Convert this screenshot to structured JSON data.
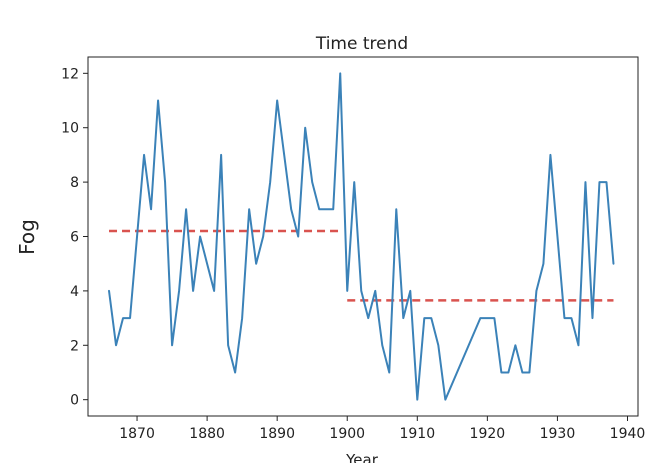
{
  "chart_data": {
    "type": "line",
    "title": "Time trend",
    "xlabel": "Year",
    "ylabel": "Fog",
    "xlim": [
      1863,
      1941.5
    ],
    "ylim": [
      -0.6,
      12.6
    ],
    "xticks": [
      1870,
      1880,
      1890,
      1900,
      1910,
      1920,
      1930,
      1940
    ],
    "yticks": [
      0,
      2,
      4,
      6,
      8,
      10,
      12
    ],
    "grid": false,
    "legend": "none",
    "series": [
      {
        "color": "#3b82b8",
        "x": [
          1866,
          1867,
          1868,
          1869,
          1870,
          1871,
          1872,
          1873,
          1874,
          1875,
          1876,
          1877,
          1878,
          1879,
          1880,
          1881,
          1882,
          1883,
          1884,
          1885,
          1886,
          1887,
          1888,
          1889,
          1890,
          1891,
          1892,
          1893,
          1894,
          1895,
          1896,
          1897,
          1898,
          1899,
          1900,
          1901,
          1902,
          1903,
          1904,
          1905,
          1906,
          1907,
          1908,
          1909,
          1910,
          1911,
          1912,
          1913,
          1914,
          1919,
          1920,
          1921,
          1922,
          1923,
          1924,
          1925,
          1926,
          1927,
          1928,
          1929,
          1930,
          1931,
          1932,
          1933,
          1934,
          1935,
          1936,
          1937,
          1938
        ],
        "y": [
          4,
          2,
          3,
          3,
          6,
          9,
          7,
          11,
          8,
          2,
          4,
          7,
          4,
          6,
          5,
          4,
          9,
          2,
          1,
          3,
          7,
          5,
          6,
          8,
          11,
          9,
          7,
          6,
          10,
          8,
          7,
          7,
          7,
          12,
          4,
          8,
          4,
          3,
          4,
          2,
          1,
          7,
          3,
          4,
          0,
          3,
          3,
          2,
          0,
          3,
          3,
          3,
          1,
          1,
          2,
          1,
          1,
          4,
          5,
          9,
          6,
          3,
          3,
          2,
          8,
          3,
          8,
          8,
          5
        ]
      }
    ],
    "reference_lines": [
      {
        "color": "#d9534f",
        "x": [
          1866,
          1899
        ],
        "y": [
          6.2,
          6.2
        ]
      },
      {
        "color": "#d9534f",
        "x": [
          1900,
          1938
        ],
        "y": [
          3.65,
          3.65
        ]
      }
    ]
  }
}
